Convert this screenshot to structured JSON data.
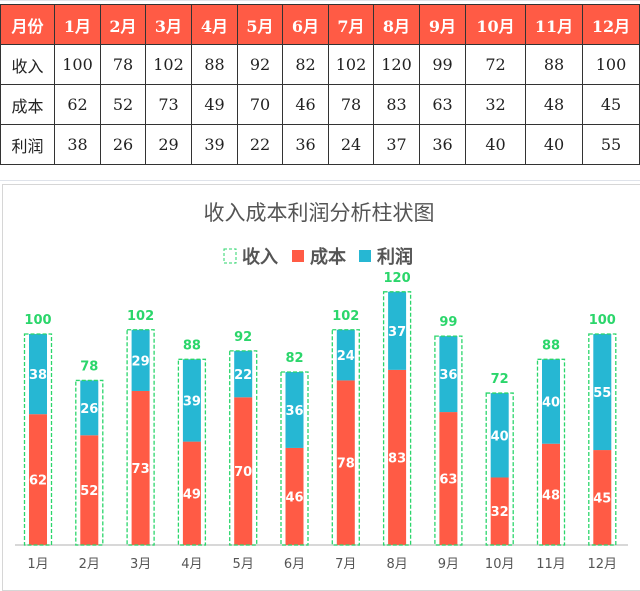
{
  "table": {
    "header_label": "月份",
    "months": [
      "1月",
      "2月",
      "3月",
      "4月",
      "5月",
      "6月",
      "7月",
      "8月",
      "9月",
      "10月",
      "11月",
      "12月"
    ],
    "rows": [
      {
        "label": "收入",
        "values": [
          100,
          78,
          102,
          88,
          92,
          82,
          102,
          120,
          99,
          72,
          88,
          100
        ]
      },
      {
        "label": "成本",
        "values": [
          62,
          52,
          73,
          49,
          70,
          46,
          78,
          83,
          63,
          32,
          48,
          45
        ]
      },
      {
        "label": "利润",
        "values": [
          38,
          26,
          29,
          39,
          22,
          36,
          24,
          37,
          36,
          40,
          40,
          55
        ]
      }
    ]
  },
  "chart_data": {
    "type": "bar",
    "stacked": true,
    "title": "收入成本利润分析柱状图",
    "legend_position": "top",
    "categories": [
      "1月",
      "2月",
      "3月",
      "4月",
      "5月",
      "6月",
      "7月",
      "8月",
      "9月",
      "10月",
      "11月",
      "12月"
    ],
    "series": [
      {
        "name": "收入",
        "style": "dashed-outline",
        "color": "#2BD66B",
        "values": [
          100,
          78,
          102,
          88,
          92,
          82,
          102,
          120,
          99,
          72,
          88,
          100
        ]
      },
      {
        "name": "成本",
        "color": "#FF5B45",
        "values": [
          62,
          52,
          73,
          49,
          70,
          46,
          78,
          83,
          63,
          32,
          48,
          45
        ]
      },
      {
        "name": "利润",
        "color": "#26B7D3",
        "values": [
          38,
          26,
          29,
          39,
          22,
          36,
          24,
          37,
          36,
          40,
          40,
          55
        ]
      }
    ],
    "data_labels": true,
    "grid": false
  }
}
